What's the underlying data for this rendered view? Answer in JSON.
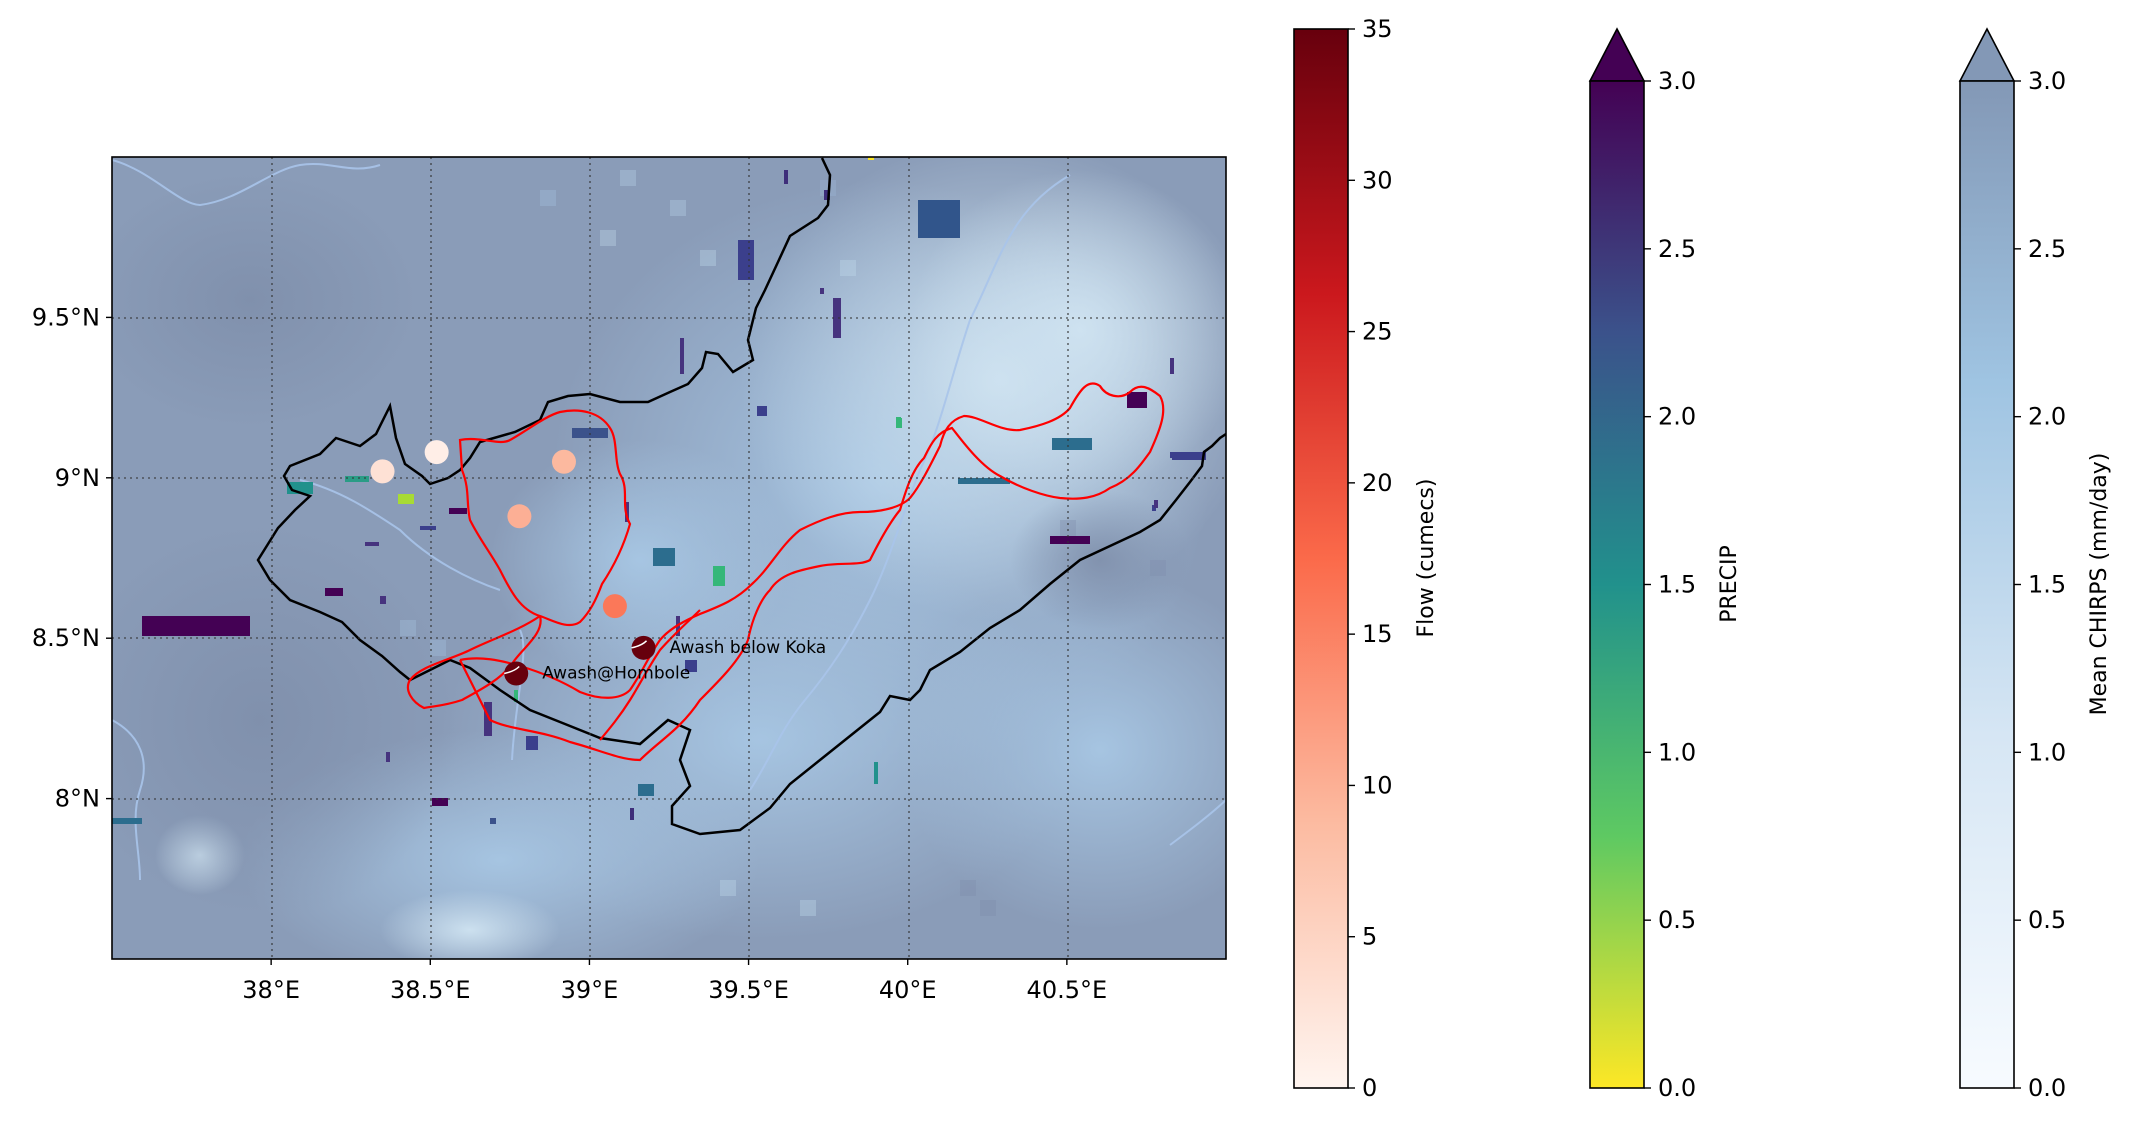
{
  "map": {
    "lon_range": [
      37.5,
      41.0
    ],
    "lat_range": [
      7.5,
      10.0
    ],
    "x_ticks": [
      {
        "value": 38.0,
        "label": "38°E"
      },
      {
        "value": 38.5,
        "label": "38.5°E"
      },
      {
        "value": 39.0,
        "label": "39°E"
      },
      {
        "value": 39.5,
        "label": "39.5°E"
      },
      {
        "value": 40.0,
        "label": "40°E"
      },
      {
        "value": 40.5,
        "label": "40.5°E"
      }
    ],
    "y_ticks": [
      {
        "value": 9.5,
        "label": "9.5°N"
      },
      {
        "value": 9.0,
        "label": "9°N"
      },
      {
        "value": 8.5,
        "label": "8.5°N"
      },
      {
        "value": 8.0,
        "label": "8°N"
      }
    ],
    "gridlines": true
  },
  "stations": [
    {
      "name": "Awash below Koka",
      "lon": 39.17,
      "lat": 8.47,
      "flow": 35
    },
    {
      "name": "Awash@Hombole",
      "lon": 38.77,
      "lat": 8.39,
      "flow": 35
    }
  ],
  "flow_points": [
    {
      "lon": 38.35,
      "lat": 9.02,
      "flow": 3
    },
    {
      "lon": 38.52,
      "lat": 9.08,
      "flow": 1
    },
    {
      "lon": 38.92,
      "lat": 9.05,
      "flow": 9
    },
    {
      "lon": 38.78,
      "lat": 8.88,
      "flow": 10
    },
    {
      "lon": 39.08,
      "lat": 8.6,
      "flow": 16
    }
  ],
  "colorbars": [
    {
      "id": "flow",
      "label": "Flow (cumecs)",
      "min": 0,
      "max": 35,
      "extend": "neither",
      "ticks": [
        "0",
        "5",
        "10",
        "15",
        "20",
        "25",
        "30",
        "35"
      ],
      "cmap": "Reds"
    },
    {
      "id": "precip",
      "label": "PRECIP",
      "min": 0.0,
      "max": 3.0,
      "extend": "max",
      "ticks": [
        "0.0",
        "0.5",
        "1.0",
        "1.5",
        "2.0",
        "2.5",
        "3.0"
      ],
      "cmap": "viridis_r"
    },
    {
      "id": "chirps",
      "label": "Mean CHIRPS (mm/day)",
      "min": 0.0,
      "max": 3.0,
      "extend": "max",
      "ticks": [
        "0.0",
        "0.5",
        "1.0",
        "1.5",
        "2.0",
        "2.5",
        "3.0"
      ],
      "cmap": "Blues (alpha 0.5)"
    }
  ],
  "colors": {
    "basin_outline": "#000000",
    "subbasin_outline": "#ff0000",
    "river": "#a8c4ea",
    "map_background": "#8a9cb8"
  }
}
